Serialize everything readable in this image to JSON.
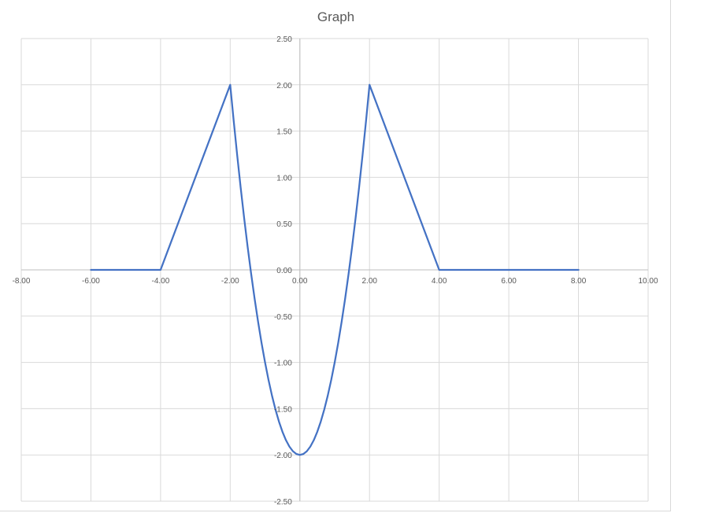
{
  "chart_data": {
    "type": "line",
    "title": "Graph",
    "xlabel": "",
    "ylabel": "",
    "xlim": [
      -8,
      10
    ],
    "ylim": [
      -2.5,
      2.5
    ],
    "x_ticks": [
      "-8.00",
      "-6.00",
      "-4.00",
      "-2.00",
      "0.00",
      "2.00",
      "4.00",
      "6.00",
      "8.00",
      "10.00"
    ],
    "y_ticks": [
      "2.50",
      "2.00",
      "1.50",
      "1.00",
      "0.50",
      "0.00",
      "-0.50",
      "-1.00",
      "-1.50",
      "-2.00",
      "-2.50"
    ],
    "grid": true,
    "series": [
      {
        "color": "#4472c4",
        "points": [
          [
            -6,
            0
          ],
          [
            -4,
            0
          ],
          [
            -2,
            2
          ],
          [
            -1.9,
            1.61
          ],
          [
            -1.8,
            1.24
          ],
          [
            -1.7,
            0.89
          ],
          [
            -1.6,
            0.56
          ],
          [
            -1.5,
            0.25
          ],
          [
            -1.4,
            -0.04
          ],
          [
            -1.3,
            -0.31
          ],
          [
            -1.2,
            -0.56
          ],
          [
            -1.1,
            -0.79
          ],
          [
            -1.0,
            -1.0
          ],
          [
            -0.9,
            -1.19
          ],
          [
            -0.8,
            -1.36
          ],
          [
            -0.7,
            -1.51
          ],
          [
            -0.6,
            -1.64
          ],
          [
            -0.5,
            -1.75
          ],
          [
            -0.4,
            -1.84
          ],
          [
            -0.3,
            -1.91
          ],
          [
            -0.2,
            -1.96
          ],
          [
            -0.1,
            -1.99
          ],
          [
            0,
            -2
          ],
          [
            0.1,
            -1.99
          ],
          [
            0.2,
            -1.96
          ],
          [
            0.3,
            -1.91
          ],
          [
            0.4,
            -1.84
          ],
          [
            0.5,
            -1.75
          ],
          [
            0.6,
            -1.64
          ],
          [
            0.7,
            -1.51
          ],
          [
            0.8,
            -1.36
          ],
          [
            0.9,
            -1.19
          ],
          [
            1.0,
            -1.0
          ],
          [
            1.1,
            -0.79
          ],
          [
            1.2,
            -0.56
          ],
          [
            1.3,
            -0.31
          ],
          [
            1.4,
            -0.04
          ],
          [
            1.5,
            0.25
          ],
          [
            1.6,
            0.56
          ],
          [
            1.7,
            0.89
          ],
          [
            1.8,
            1.24
          ],
          [
            1.9,
            1.61
          ],
          [
            2,
            2
          ],
          [
            4,
            0
          ],
          [
            6,
            0
          ],
          [
            8,
            0
          ]
        ]
      }
    ]
  }
}
